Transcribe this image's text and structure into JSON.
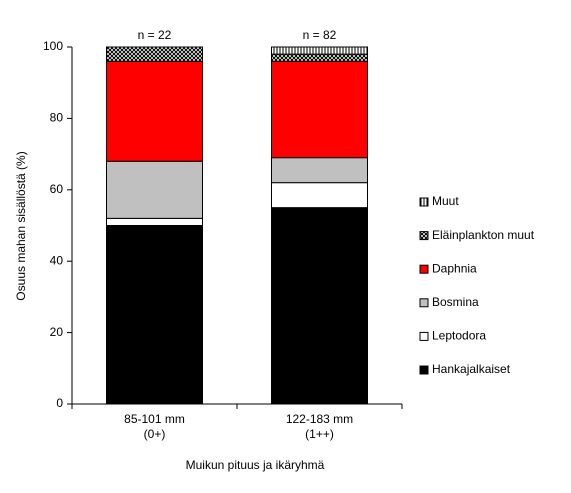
{
  "chart_data": {
    "type": "stacked_bar",
    "categories": [
      "85-101  mm",
      "122-183  mm"
    ],
    "category_sublabels": [
      "(0+)",
      "(1++)"
    ],
    "annotations": [
      "n = 22",
      "n = 82"
    ],
    "xlabel": "Muikun  pituus ja ikäryhmä",
    "ylabel": "Osuus mahan sisällöstä (%)",
    "ylim": [
      0,
      100
    ],
    "yticks": [
      0,
      20,
      40,
      60,
      80,
      100
    ],
    "grid": false,
    "legend": "right",
    "series": [
      {
        "name": "Hankajalkaiset",
        "color": "#000000",
        "values": [
          50,
          55
        ]
      },
      {
        "name": "Leptodora",
        "color": "#ffffff",
        "values": [
          2,
          7
        ]
      },
      {
        "name": "Bosmina",
        "color": "#c0c0c0",
        "values": [
          16,
          7
        ]
      },
      {
        "name": "Daphnia",
        "color": "#ff0000",
        "values": [
          28,
          27
        ]
      },
      {
        "name": "Eläinplankton muut",
        "color": "#808080",
        "pattern": "crosshatch",
        "values": [
          4,
          2
        ]
      },
      {
        "name": "Muut",
        "color": "#000000",
        "pattern": "vertical",
        "values": [
          0,
          2
        ]
      }
    ]
  }
}
